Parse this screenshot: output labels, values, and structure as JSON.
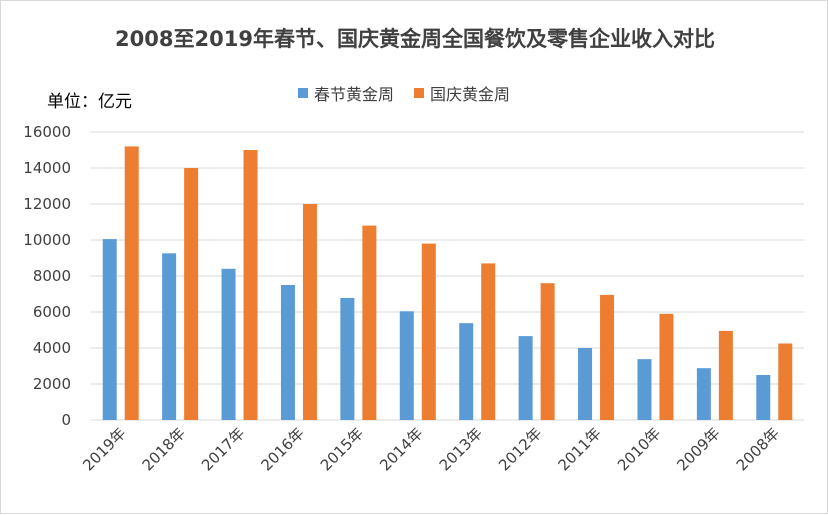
{
  "chart_data": {
    "type": "bar",
    "title": "2008至2019年春节、国庆黄金周全国餐饮及零售企业收入对比",
    "unit_label": "单位：亿元",
    "categories": [
      "2019年",
      "2018年",
      "2017年",
      "2016年",
      "2015年",
      "2014年",
      "2013年",
      "2012年",
      "2011年",
      "2010年",
      "2009年",
      "2008年"
    ],
    "series": [
      {
        "name": "春节黄金周",
        "color": "#5b9bd5",
        "values": [
          10050,
          9260,
          8400,
          7500,
          6780,
          6040,
          5380,
          4660,
          4000,
          3380,
          2880,
          2500
        ]
      },
      {
        "name": "国庆黄金周",
        "color": "#ed7d31",
        "values": [
          15200,
          14000,
          15000,
          12000,
          10800,
          9800,
          8700,
          7600,
          6950,
          5900,
          4950,
          4250
        ]
      }
    ],
    "ylim": [
      0,
      16000
    ],
    "yticks": [
      0,
      2000,
      4000,
      6000,
      8000,
      10000,
      12000,
      14000,
      16000
    ],
    "grid": true,
    "legend": "top"
  }
}
